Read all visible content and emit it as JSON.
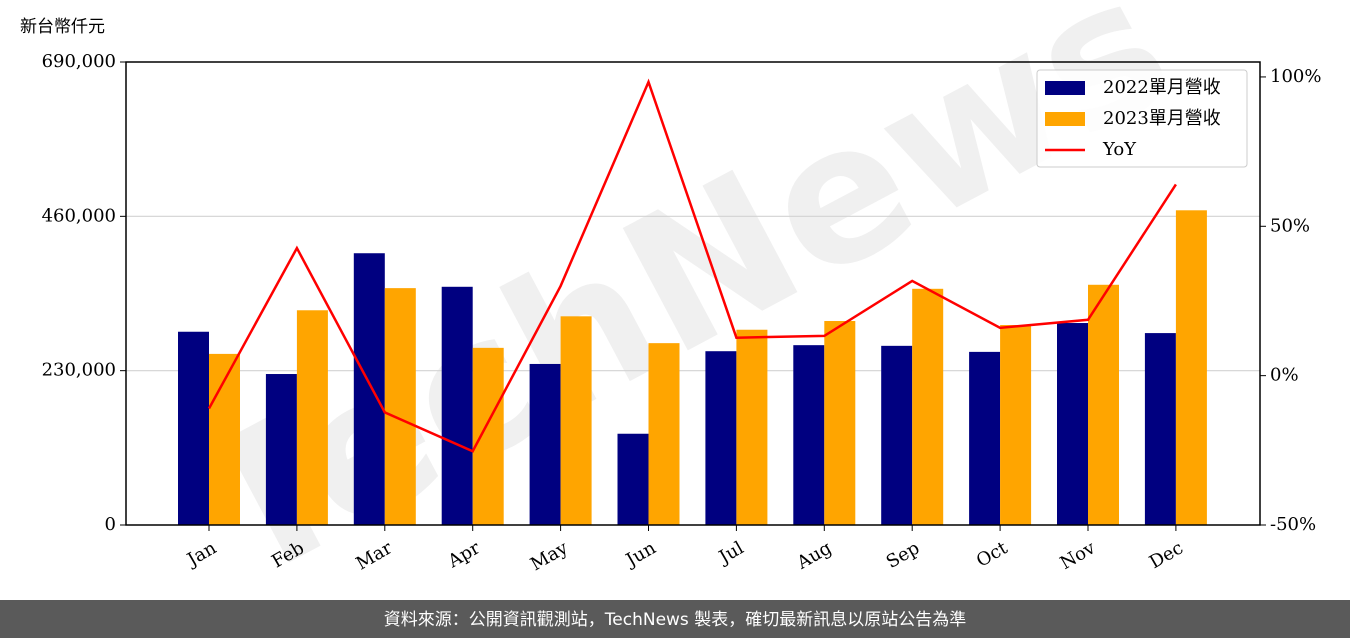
{
  "chart_data": {
    "type": "bar_line",
    "y_unit_label": "新台幣仟元",
    "watermark": "TechNews",
    "footer": "資料來源：公開資訊觀測站，TechNews 製表，確切最新訊息以原站公告為準",
    "categories": [
      "Jan",
      "Feb",
      "Mar",
      "Apr",
      "May",
      "Jun",
      "Jul",
      "Aug",
      "Sep",
      "Oct",
      "Nov",
      "Dec"
    ],
    "series": [
      {
        "name": "2022單月營收",
        "color": "#000080",
        "type": "bar",
        "values": [
          288000,
          225000,
          405000,
          355000,
          240000,
          136000,
          259000,
          268000,
          267000,
          258000,
          301000,
          286000
        ]
      },
      {
        "name": "2023單月營收",
        "color": "#ffa500",
        "type": "bar",
        "values": [
          255000,
          320000,
          353000,
          264000,
          311000,
          271000,
          291000,
          304000,
          352000,
          298000,
          358000,
          469000
        ]
      },
      {
        "name": "YoY",
        "color": "#ff0000",
        "type": "line",
        "axis": "y2",
        "values": [
          -11,
          42.7,
          -12.3,
          -25.3,
          30,
          98.3,
          12.7,
          13.3,
          31.7,
          16,
          18.7,
          64
        ]
      }
    ],
    "ylim": [
      0,
      690000
    ],
    "yticks": [
      0,
      {
        "value": 230000,
        "label": "230,000"
      },
      {
        "value": 460000,
        "label": "460,000"
      },
      {
        "value": 690000,
        "label": "690,000"
      }
    ],
    "y2lim": [
      -50,
      105
    ],
    "y2ticks": [
      {
        "value": -50,
        "label": "-50%"
      },
      {
        "value": 0,
        "label": "0%"
      },
      {
        "value": 50,
        "label": "50%"
      },
      {
        "value": 100,
        "label": "100%"
      }
    ],
    "grid": true,
    "legend": "upper right"
  }
}
